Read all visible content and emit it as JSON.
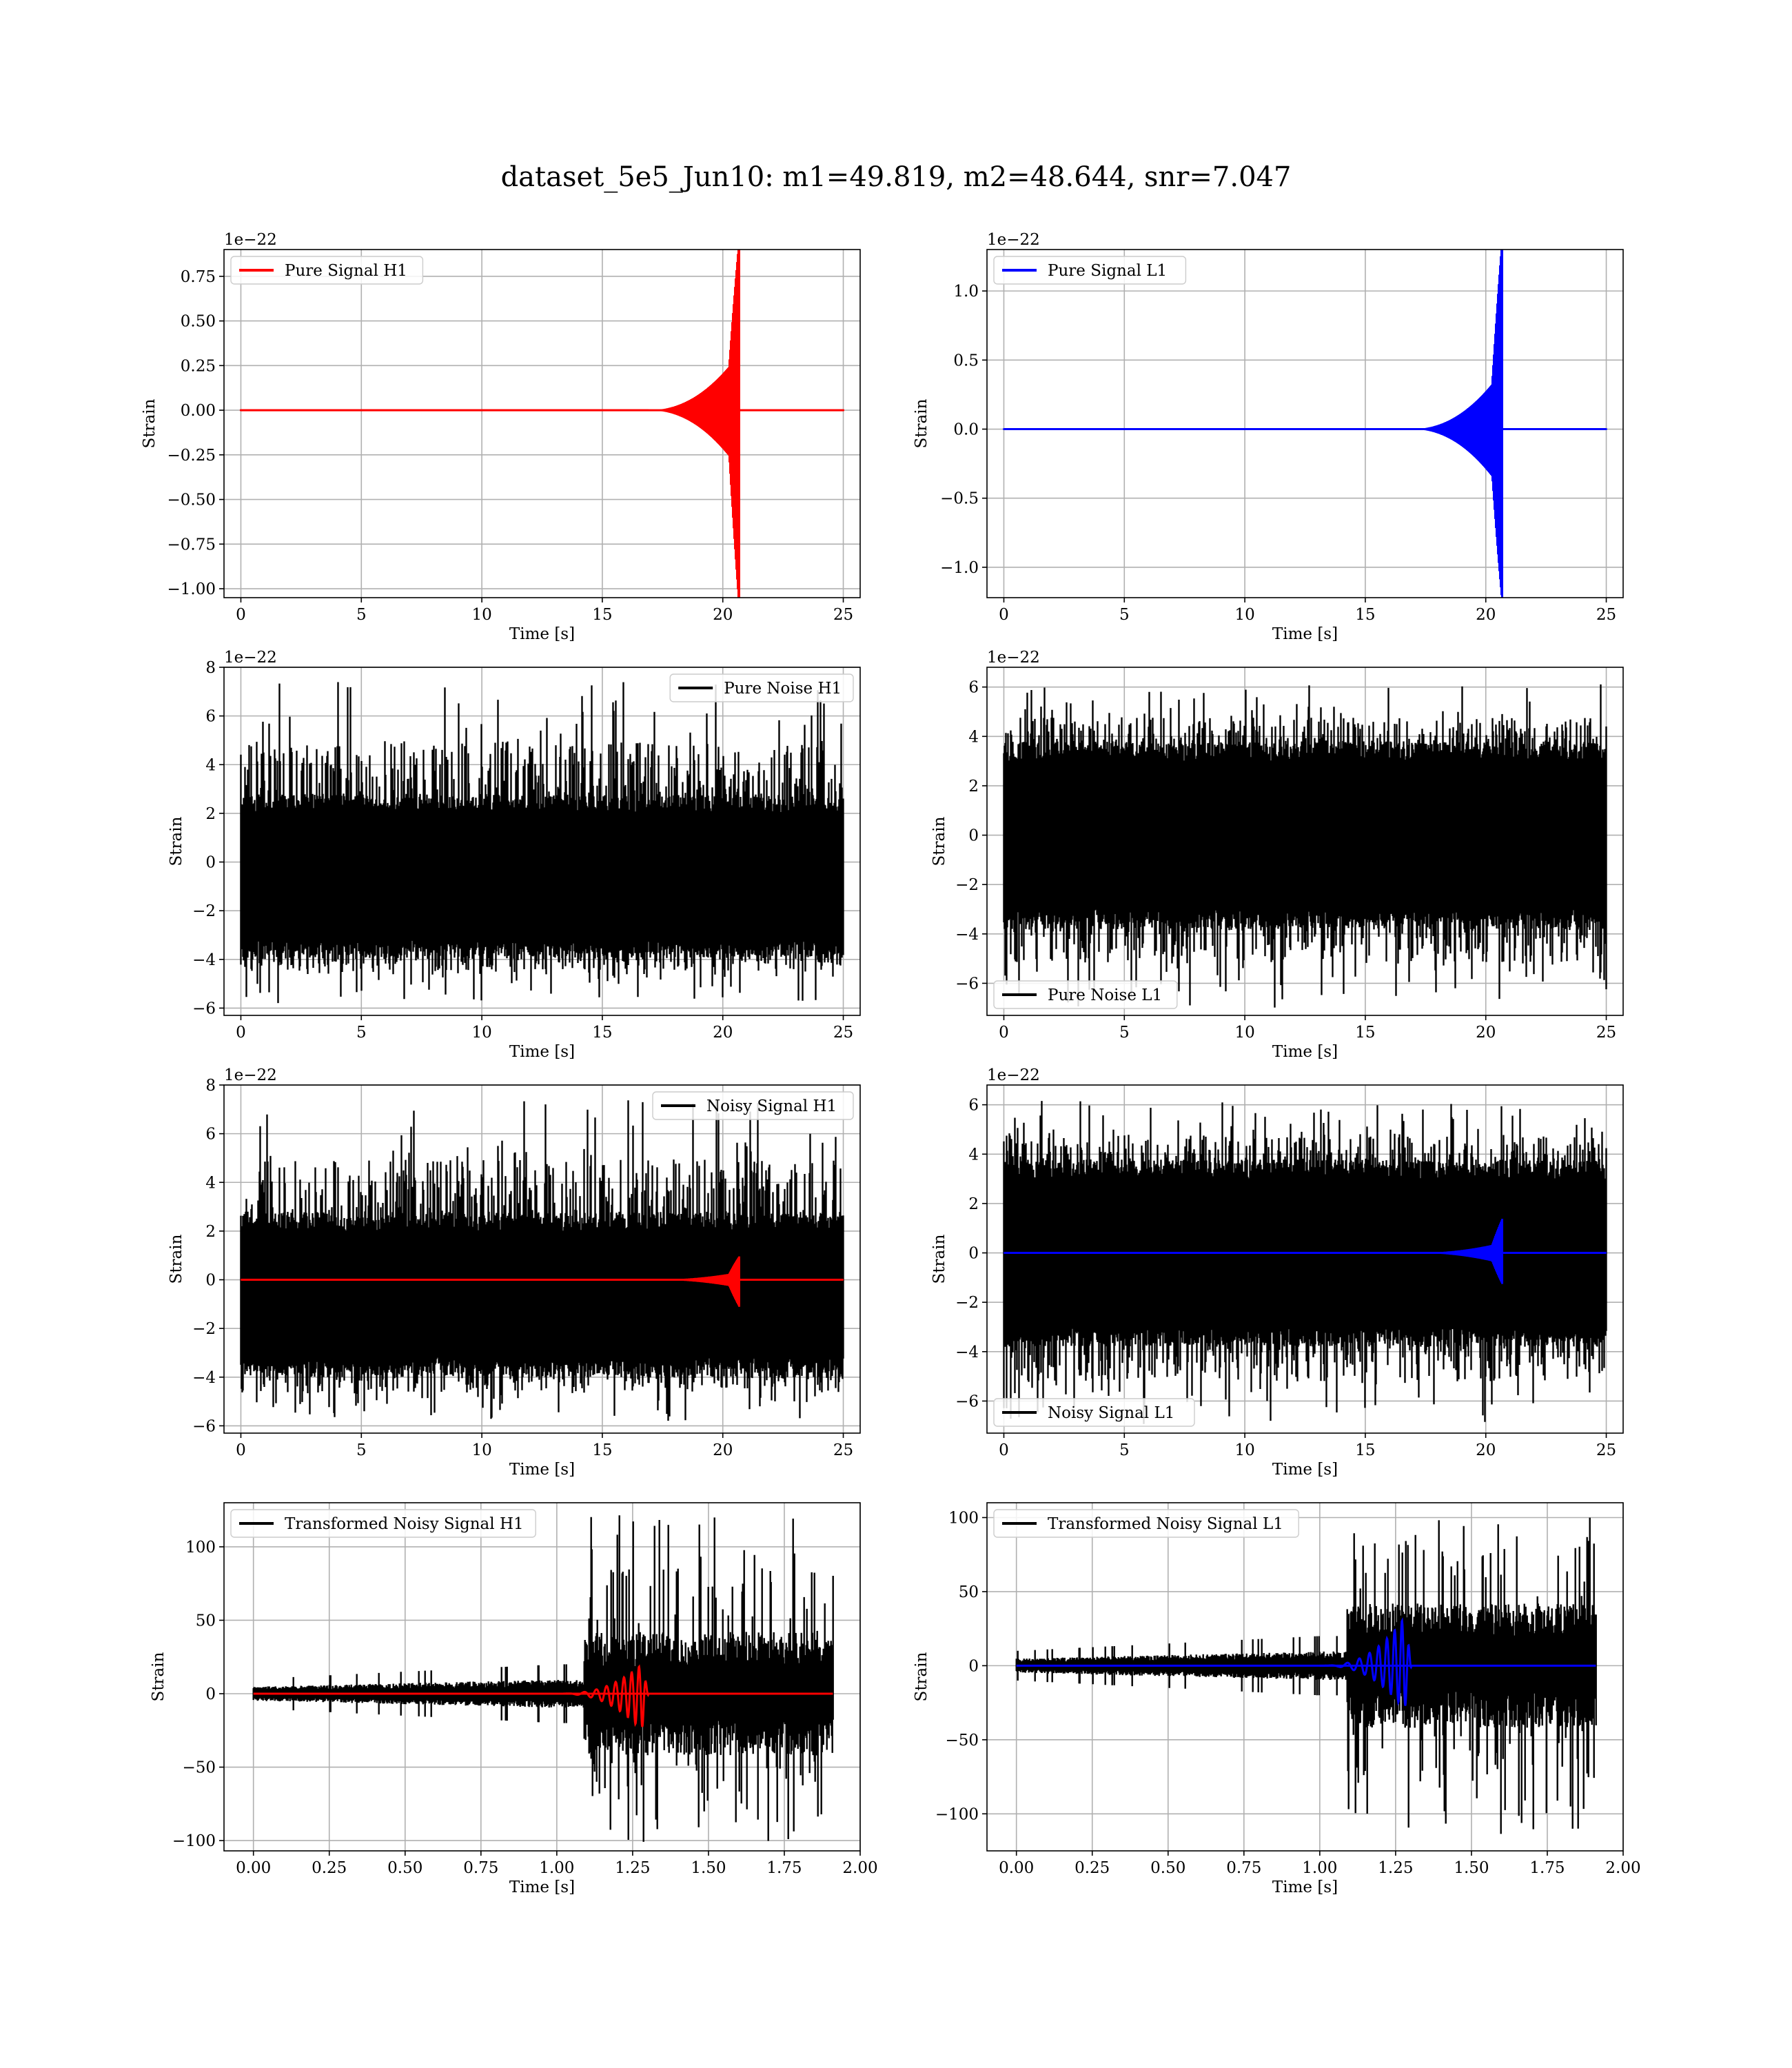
{
  "suptitle": "dataset_5e5_Jun10: m1=49.819, m2=48.644, snr=7.047",
  "colors": {
    "H1_signal": "#ff0000",
    "L1_signal": "#0000ff",
    "noise": "#000000",
    "grid": "#b0b0b0"
  },
  "chart_data": [
    {
      "id": "pure-signal-h1",
      "type": "line",
      "xlabel": "Time [s]",
      "ylabel": "Strain",
      "offset_text": "1e−22",
      "xlim": [
        -0.7,
        25.7
      ],
      "ylim": [
        -1.05,
        0.9
      ],
      "xticks": [
        0,
        5,
        10,
        15,
        20,
        25
      ],
      "xtick_labels": [
        "0",
        "5",
        "10",
        "15",
        "20",
        "25"
      ],
      "yticks": [
        -1.0,
        -0.75,
        -0.5,
        -0.25,
        0.0,
        0.25,
        0.5,
        0.75
      ],
      "ytick_labels": [
        "−1.00",
        "−0.75",
        "−0.50",
        "−0.25",
        "0.00",
        "0.25",
        "0.50",
        "0.75"
      ],
      "grid": true,
      "legend_loc": "upper left",
      "series": [
        {
          "name": "Pure Signal H1",
          "color": "#ff0000",
          "kind": "chirp",
          "x_range": [
            0,
            25
          ],
          "t_merge": 20.6,
          "env_start": 18.6,
          "env_mid": 0.3,
          "peak_pos": 0.84,
          "peak_neg": -0.96
        }
      ]
    },
    {
      "id": "pure-signal-l1",
      "type": "line",
      "xlabel": "Time [s]",
      "ylabel": "Strain",
      "offset_text": "1e−22",
      "xlim": [
        -0.7,
        25.7
      ],
      "ylim": [
        -1.22,
        1.3
      ],
      "xticks": [
        0,
        5,
        10,
        15,
        20,
        25
      ],
      "xtick_labels": [
        "0",
        "5",
        "10",
        "15",
        "20",
        "25"
      ],
      "yticks": [
        -1.0,
        -0.5,
        0.0,
        0.5,
        1.0
      ],
      "ytick_labels": [
        "−1.0",
        "−0.5",
        "0.0",
        "0.5",
        "1.0"
      ],
      "grid": true,
      "legend_loc": "upper left",
      "series": [
        {
          "name": "Pure Signal L1",
          "color": "#0000ff",
          "kind": "chirp",
          "x_range": [
            0,
            25
          ],
          "t_merge": 20.6,
          "env_start": 18.6,
          "env_mid": 0.4,
          "peak_pos": 1.2,
          "peak_neg": -1.1
        }
      ]
    },
    {
      "id": "pure-noise-h1",
      "type": "line",
      "xlabel": "Time [s]",
      "ylabel": "Strain",
      "offset_text": "1e−22",
      "xlim": [
        -0.7,
        25.7
      ],
      "ylim": [
        -6.3,
        8.0
      ],
      "xticks": [
        0,
        5,
        10,
        15,
        20,
        25
      ],
      "xtick_labels": [
        "0",
        "5",
        "10",
        "15",
        "20",
        "25"
      ],
      "yticks": [
        -6,
        -4,
        -2,
        0,
        2,
        4,
        6,
        8
      ],
      "ytick_labels": [
        "−6",
        "−4",
        "−2",
        "0",
        "2",
        "4",
        "6",
        "8"
      ],
      "grid": true,
      "legend_loc": "upper right",
      "series": [
        {
          "name": "Pure Noise H1",
          "color": "#000000",
          "kind": "noise",
          "x_range": [
            0,
            25
          ],
          "center": -0.6,
          "band": 2.6,
          "max": 7.4,
          "min": -5.8
        }
      ]
    },
    {
      "id": "pure-noise-l1",
      "type": "line",
      "xlabel": "Time [s]",
      "ylabel": "Strain",
      "offset_text": "1e−22",
      "xlim": [
        -0.7,
        25.7
      ],
      "ylim": [
        -7.3,
        6.8
      ],
      "xticks": [
        0,
        5,
        10,
        15,
        20,
        25
      ],
      "xtick_labels": [
        "0",
        "5",
        "10",
        "15",
        "20",
        "25"
      ],
      "yticks": [
        -6,
        -4,
        -2,
        0,
        2,
        4,
        6
      ],
      "ytick_labels": [
        "−6",
        "−4",
        "−2",
        "0",
        "2",
        "4",
        "6"
      ],
      "grid": true,
      "legend_loc": "lower left",
      "series": [
        {
          "name": "Pure Noise L1",
          "color": "#000000",
          "kind": "noise",
          "x_range": [
            0,
            25
          ],
          "center": 0.0,
          "band": 3.0,
          "max": 6.2,
          "min": -7.0
        }
      ]
    },
    {
      "id": "noisy-signal-h1",
      "type": "line",
      "xlabel": "Time [s]",
      "ylabel": "Strain",
      "offset_text": "1e−22",
      "xlim": [
        -0.7,
        25.7
      ],
      "ylim": [
        -6.3,
        8.0
      ],
      "xticks": [
        0,
        5,
        10,
        15,
        20,
        25
      ],
      "xtick_labels": [
        "0",
        "5",
        "10",
        "15",
        "20",
        "25"
      ],
      "yticks": [
        -6,
        -4,
        -2,
        0,
        2,
        4,
        6,
        8
      ],
      "ytick_labels": [
        "−6",
        "−4",
        "−2",
        "0",
        "2",
        "4",
        "6",
        "8"
      ],
      "grid": true,
      "legend_loc": "upper right",
      "series": [
        {
          "name": "Noisy Signal H1",
          "color": "#000000",
          "kind": "noise",
          "x_range": [
            0,
            25
          ],
          "center": -0.6,
          "band": 2.6,
          "max": 7.4,
          "min": -5.8
        },
        {
          "color": "#ff0000",
          "kind": "chirp",
          "x_range": [
            0,
            25
          ],
          "t_merge": 20.6,
          "env_start": 18.6,
          "env_mid": 0.3,
          "peak_pos": 0.84,
          "peak_neg": -0.96
        }
      ]
    },
    {
      "id": "noisy-signal-l1",
      "type": "line",
      "xlabel": "Time [s]",
      "ylabel": "Strain",
      "offset_text": "1e−22",
      "xlim": [
        -0.7,
        25.7
      ],
      "ylim": [
        -7.3,
        6.8
      ],
      "xticks": [
        0,
        5,
        10,
        15,
        20,
        25
      ],
      "xtick_labels": [
        "0",
        "5",
        "10",
        "15",
        "20",
        "25"
      ],
      "yticks": [
        -6,
        -4,
        -2,
        0,
        2,
        4,
        6
      ],
      "ytick_labels": [
        "−6",
        "−4",
        "−2",
        "0",
        "2",
        "4",
        "6"
      ],
      "grid": true,
      "legend_loc": "lower left",
      "series": [
        {
          "name": "Noisy Signal L1",
          "color": "#000000",
          "kind": "noise",
          "x_range": [
            0,
            25
          ],
          "center": 0.0,
          "band": 3.0,
          "max": 6.2,
          "min": -7.0
        },
        {
          "color": "#0000ff",
          "kind": "chirp",
          "x_range": [
            0,
            25
          ],
          "t_merge": 20.6,
          "env_start": 18.6,
          "env_mid": 0.4,
          "peak_pos": 1.2,
          "peak_neg": -1.1
        }
      ]
    },
    {
      "id": "transformed-noisy-signal-h1",
      "type": "line",
      "xlabel": "Time [s]",
      "ylabel": "Strain",
      "offset_text": "",
      "xlim": [
        -0.097,
        2.0
      ],
      "ylim": [
        -107,
        130
      ],
      "xticks": [
        0.0,
        0.25,
        0.5,
        0.75,
        1.0,
        1.25,
        1.5,
        1.75,
        2.0
      ],
      "xtick_labels": [
        "0.00",
        "0.25",
        "0.50",
        "0.75",
        "1.00",
        "1.25",
        "1.50",
        "1.75",
        "2.00"
      ],
      "yticks": [
        -100,
        -50,
        0,
        50,
        100
      ],
      "ytick_labels": [
        "−100",
        "−50",
        "0",
        "50",
        "100"
      ],
      "grid": true,
      "legend_loc": "upper left",
      "series": [
        {
          "name": "Transformed Noisy Signal H1",
          "color": "#000000",
          "kind": "whitened",
          "x_range": [
            0,
            1.91
          ],
          "early_band": 4,
          "mid_band": 8,
          "late_band": 35,
          "late_start": 1.09,
          "max": 124,
          "min": -101
        },
        {
          "color": "#ff0000",
          "kind": "wchirp",
          "x_range": [
            0,
            1.91
          ],
          "t_merge": 1.28,
          "env_start": 1.0,
          "peak_pos": 20,
          "peak_neg": -25
        }
      ]
    },
    {
      "id": "transformed-noisy-signal-l1",
      "type": "line",
      "xlabel": "Time [s]",
      "ylabel": "Strain",
      "offset_text": "",
      "xlim": [
        -0.097,
        2.0
      ],
      "ylim": [
        -125,
        110
      ],
      "xticks": [
        0.0,
        0.25,
        0.5,
        0.75,
        1.0,
        1.25,
        1.5,
        1.75,
        2.0
      ],
      "xtick_labels": [
        "0.00",
        "0.25",
        "0.50",
        "0.75",
        "1.00",
        "1.25",
        "1.50",
        "1.75",
        "2.00"
      ],
      "yticks": [
        -100,
        -50,
        0,
        50,
        100
      ],
      "ytick_labels": [
        "−100",
        "−50",
        "0",
        "50",
        "100"
      ],
      "grid": true,
      "legend_loc": "upper left",
      "series": [
        {
          "name": "Transformed Noisy Signal L1",
          "color": "#000000",
          "kind": "whitened",
          "x_range": [
            0,
            1.91
          ],
          "early_band": 4,
          "mid_band": 8,
          "late_band": 35,
          "late_start": 1.09,
          "max": 100,
          "min": -114
        },
        {
          "color": "#0000ff",
          "kind": "wchirp",
          "x_range": [
            0,
            1.91
          ],
          "t_merge": 1.28,
          "env_start": 1.0,
          "peak_pos": 33,
          "peak_neg": -30
        }
      ]
    }
  ]
}
